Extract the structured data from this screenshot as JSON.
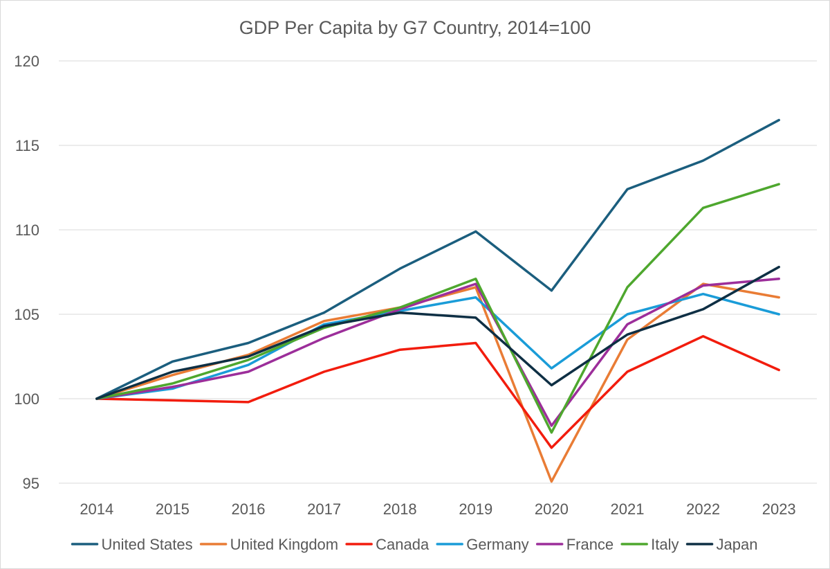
{
  "chart_data": {
    "type": "line",
    "title": "GDP Per Capita by G7 Country, 2014=100",
    "xlabel": "",
    "ylabel": "",
    "categories": [
      "2014",
      "2015",
      "2016",
      "2017",
      "2018",
      "2019",
      "2020",
      "2021",
      "2022",
      "2023"
    ],
    "ylim": [
      95,
      120
    ],
    "yticks": [
      95,
      100,
      105,
      110,
      115,
      120
    ],
    "grid": true,
    "legend_position": "bottom",
    "series": [
      {
        "name": "United States",
        "color": "#1B5E7E",
        "values": [
          100,
          102.2,
          103.3,
          105.1,
          107.7,
          109.9,
          106.4,
          112.4,
          114.1,
          116.5
        ]
      },
      {
        "name": "United Kingdom",
        "color": "#E97C35",
        "values": [
          100,
          101.4,
          102.6,
          104.6,
          105.4,
          106.6,
          95.1,
          103.5,
          106.8,
          106.0
        ]
      },
      {
        "name": "Canada",
        "color": "#F21C0D",
        "values": [
          100,
          99.9,
          99.8,
          101.6,
          102.9,
          103.3,
          97.1,
          101.6,
          103.7,
          101.7
        ]
      },
      {
        "name": "Germany",
        "color": "#1A9CD8",
        "values": [
          100,
          100.6,
          102.0,
          104.4,
          105.2,
          106.0,
          101.8,
          105.0,
          106.2,
          105.0
        ]
      },
      {
        "name": "France",
        "color": "#9C2E9A",
        "values": [
          100,
          100.7,
          101.6,
          103.6,
          105.3,
          106.8,
          98.4,
          104.4,
          106.7,
          107.1
        ]
      },
      {
        "name": "Italy",
        "color": "#4EA72E",
        "values": [
          100,
          100.9,
          102.3,
          104.2,
          105.4,
          107.1,
          98.0,
          106.6,
          111.3,
          112.7
        ]
      },
      {
        "name": "Japan",
        "color": "#0E2F44",
        "values": [
          100,
          101.6,
          102.5,
          104.3,
          105.1,
          104.8,
          100.8,
          103.8,
          105.3,
          107.8
        ]
      }
    ]
  }
}
